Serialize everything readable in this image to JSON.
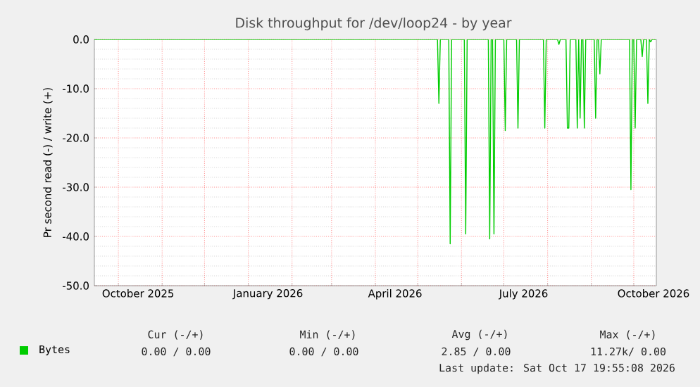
{
  "chart_data": {
    "type": "line",
    "title": "Disk throughput for /dev/loop24 - by year",
    "ylabel": "Pr second read (-) / write (+)",
    "series": [
      {
        "name": "Bytes",
        "color": "#00cc00",
        "x": [
          "2025-09-14",
          "2026-05-15",
          "2026-05-16",
          "2026-05-17",
          "2026-05-23",
          "2026-05-24",
          "2026-05-25",
          "2026-06-03",
          "2026-06-04",
          "2026-06-05",
          "2026-06-20",
          "2026-06-21",
          "2026-06-22",
          "2026-06-23",
          "2026-06-24",
          "2026-06-25",
          "2026-07-01",
          "2026-07-02",
          "2026-07-03",
          "2026-07-10",
          "2026-07-11",
          "2026-07-12",
          "2026-07-29",
          "2026-07-30",
          "2026-07-31",
          "2026-08-08",
          "2026-08-09",
          "2026-08-10",
          "2026-08-14",
          "2026-08-15",
          "2026-08-16",
          "2026-08-17",
          "2026-08-21",
          "2026-08-22",
          "2026-08-23",
          "2026-08-24",
          "2026-08-25",
          "2026-08-26",
          "2026-08-27",
          "2026-08-28",
          "2026-09-03",
          "2026-09-04",
          "2026-09-05",
          "2026-09-06",
          "2026-09-07",
          "2026-09-08",
          "2026-09-28",
          "2026-09-29",
          "2026-09-30",
          "2026-10-01",
          "2026-10-02",
          "2026-10-03",
          "2026-10-06",
          "2026-10-07",
          "2026-10-08",
          "2026-10-10",
          "2026-10-11",
          "2026-10-12",
          "2026-10-13",
          "2026-10-14",
          "2026-10-17"
        ],
        "values": [
          0,
          0,
          -13,
          0,
          0,
          -41.5,
          0,
          0,
          -39.5,
          0,
          0,
          -40.5,
          0,
          0,
          -39.5,
          0,
          0,
          -18.5,
          0,
          0,
          -18,
          0,
          0,
          -18,
          0,
          0,
          -1,
          0,
          0,
          -18,
          -18,
          0,
          0,
          -18,
          0,
          -16,
          0,
          0,
          -18,
          0,
          0,
          -16,
          0,
          0,
          -7,
          0,
          0,
          -30.5,
          0,
          0,
          -18,
          0,
          0,
          -3.5,
          0,
          0,
          -13,
          0,
          -0.5,
          0,
          0
        ]
      }
    ],
    "xlim": [
      "2025-09-14",
      "2026-10-17"
    ],
    "xticks": [
      {
        "value": "2025-10-01",
        "label": null
      },
      {
        "value": "2025-11-01",
        "label": null
      },
      {
        "value": "2025-12-01",
        "label": null
      },
      {
        "value": "2026-01-01",
        "label": null
      },
      {
        "value": "2026-02-01",
        "label": null
      },
      {
        "value": "2026-03-01",
        "label": null
      },
      {
        "value": "2026-04-01",
        "label": null
      },
      {
        "value": "2026-05-01",
        "label": null
      },
      {
        "value": "2026-06-01",
        "label": null
      },
      {
        "value": "2026-07-01",
        "label": null
      },
      {
        "value": "2026-08-01",
        "label": null
      },
      {
        "value": "2026-09-01",
        "label": null
      },
      {
        "value": "2026-10-01",
        "label": null
      },
      {
        "value": "2025-10-15",
        "label": "October 2025"
      },
      {
        "value": "2026-01-15",
        "label": "January 2026"
      },
      {
        "value": "2026-04-15",
        "label": "April 2026"
      },
      {
        "value": "2026-07-15",
        "label": "July 2026"
      },
      {
        "value": "2026-10-15",
        "label": "October 2026"
      }
    ],
    "ylim": [
      -50,
      0
    ],
    "yticks": [
      {
        "value": -50,
        "label": "-50.0"
      },
      {
        "value": -40,
        "label": "-40.0"
      },
      {
        "value": -30,
        "label": "-30.0"
      },
      {
        "value": -20,
        "label": "-20.0"
      },
      {
        "value": -10,
        "label": "-10.0"
      },
      {
        "value": 0,
        "label": "0.0"
      }
    ],
    "grid": true,
    "legend": "bottom",
    "marker": "none",
    "line_style": "solid",
    "annotations": [
      "Cur (-/+)",
      "Min (-/+)",
      "Avg (-/+)",
      "Max (-/+)",
      "0.00 / 0.00",
      "0.00 / 0.00",
      "2.85 / 0.00",
      "11.27k/ 0.00",
      "Last update: Sat Oct 17 19:55:08 2026"
    ]
  }
}
